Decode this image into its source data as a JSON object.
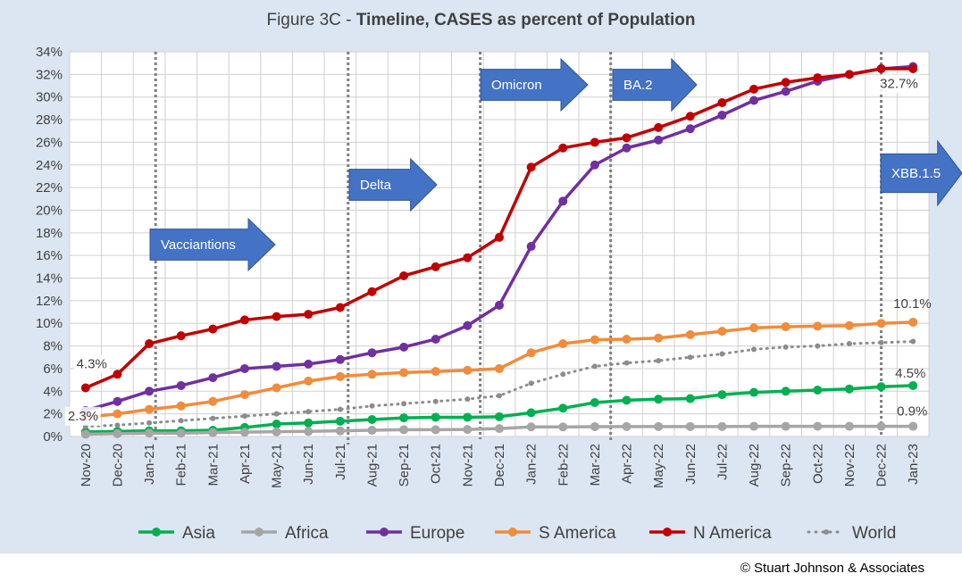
{
  "title": {
    "prefix": "Figure 3C - ",
    "bold": "Timeline, CASES as percent of Population"
  },
  "copyright": "© Stuart Johnson & Associates",
  "colors": {
    "background": "#dce6f2",
    "plot": "#ffffff",
    "grid": "#d0d0d0",
    "Asia": "#00b050",
    "Africa": "#a6a6a6",
    "Europe": "#7030a0",
    "S America": "#f08c3c",
    "N America": "#c00000",
    "World": "#8c8c8c",
    "annotation": "#4472c4"
  },
  "chart_data": {
    "type": "line",
    "title": "Figure 3C - Timeline, CASES as percent of Population",
    "xlabel": "",
    "ylabel": "",
    "ylim": [
      0,
      34
    ],
    "y_ticks": [
      "0%",
      "2%",
      "4%",
      "6%",
      "8%",
      "10%",
      "12%",
      "14%",
      "16%",
      "18%",
      "20%",
      "22%",
      "24%",
      "26%",
      "28%",
      "30%",
      "32%",
      "34%"
    ],
    "grid": true,
    "legend_position": "bottom",
    "categories": [
      "Nov-20",
      "Dec-20",
      "Jan-21",
      "Feb-21",
      "Mar-21",
      "Apr-21",
      "May-21",
      "Jun-21",
      "Jul-21",
      "Aug-21",
      "Sep-21",
      "Oct-21",
      "Nov-21",
      "Dec-21",
      "Jan-22",
      "Feb-22",
      "Mar-22",
      "Apr-22",
      "May-22",
      "Jun-22",
      "Jul-22",
      "Aug-22",
      "Sep-22",
      "Oct-22",
      "Nov-22",
      "Dec-22",
      "Jan-23"
    ],
    "series": [
      {
        "name": "Asia",
        "style": "solid",
        "values": [
          0.4,
          0.45,
          0.5,
          0.5,
          0.55,
          0.8,
          1.1,
          1.2,
          1.35,
          1.5,
          1.65,
          1.7,
          1.7,
          1.75,
          2.1,
          2.5,
          3.0,
          3.2,
          3.3,
          3.35,
          3.7,
          3.9,
          4.0,
          4.1,
          4.2,
          4.4,
          4.5
        ]
      },
      {
        "name": "Africa",
        "style": "solid",
        "values": [
          0.2,
          0.25,
          0.3,
          0.3,
          0.35,
          0.38,
          0.42,
          0.45,
          0.5,
          0.55,
          0.6,
          0.6,
          0.62,
          0.7,
          0.85,
          0.85,
          0.87,
          0.88,
          0.88,
          0.88,
          0.88,
          0.9,
          0.9,
          0.9,
          0.9,
          0.9,
          0.9
        ]
      },
      {
        "name": "Europe",
        "style": "solid",
        "values": [
          2.3,
          3.1,
          4.0,
          4.5,
          5.2,
          6.0,
          6.2,
          6.4,
          6.8,
          7.4,
          7.9,
          8.6,
          9.8,
          11.6,
          16.8,
          20.8,
          24.0,
          25.5,
          26.2,
          27.2,
          28.4,
          29.7,
          30.5,
          31.4,
          32.0,
          32.5,
          32.7
        ]
      },
      {
        "name": "S America",
        "style": "solid",
        "values": [
          1.7,
          2.0,
          2.4,
          2.7,
          3.1,
          3.7,
          4.3,
          4.9,
          5.3,
          5.5,
          5.65,
          5.75,
          5.85,
          6.0,
          7.4,
          8.2,
          8.55,
          8.6,
          8.7,
          9.0,
          9.3,
          9.6,
          9.7,
          9.75,
          9.8,
          10.0,
          10.1
        ]
      },
      {
        "name": "N America",
        "style": "solid",
        "values": [
          4.3,
          5.5,
          8.2,
          8.9,
          9.5,
          10.3,
          10.6,
          10.8,
          11.4,
          12.8,
          14.2,
          15.0,
          15.8,
          17.6,
          23.8,
          25.5,
          26.0,
          26.4,
          27.3,
          28.3,
          29.5,
          30.7,
          31.3,
          31.7,
          32.0,
          32.5,
          32.5
        ]
      },
      {
        "name": "World",
        "style": "dotted",
        "values": [
          0.9,
          1.0,
          1.2,
          1.4,
          1.6,
          1.8,
          2.0,
          2.2,
          2.4,
          2.7,
          2.9,
          3.1,
          3.3,
          3.6,
          4.7,
          5.5,
          6.2,
          6.5,
          6.7,
          7.0,
          7.3,
          7.7,
          7.9,
          8.0,
          8.2,
          8.3,
          8.4
        ]
      }
    ],
    "data_labels": [
      {
        "text": "4.3%",
        "series": "N America",
        "index": 0
      },
      {
        "text": "2.3%",
        "series": "Europe",
        "index": 0
      },
      {
        "text": "32.7%",
        "series": "Europe",
        "index": 26
      },
      {
        "text": "10.1%",
        "series": "S America",
        "index": 26
      },
      {
        "text": "4.5%",
        "series": "Asia",
        "index": 26
      },
      {
        "text": "0.9%",
        "series": "Africa",
        "index": 26
      }
    ],
    "annotations": [
      {
        "label": "Vacciantions",
        "position": "Jan-21"
      },
      {
        "label": "Delta",
        "position": "Jul-21"
      },
      {
        "label": "Omicron",
        "position": "Nov-21"
      },
      {
        "label": "BA.2",
        "position": "Mar-22"
      },
      {
        "label": "XBB.1.5",
        "position": "Dec-22"
      }
    ]
  }
}
